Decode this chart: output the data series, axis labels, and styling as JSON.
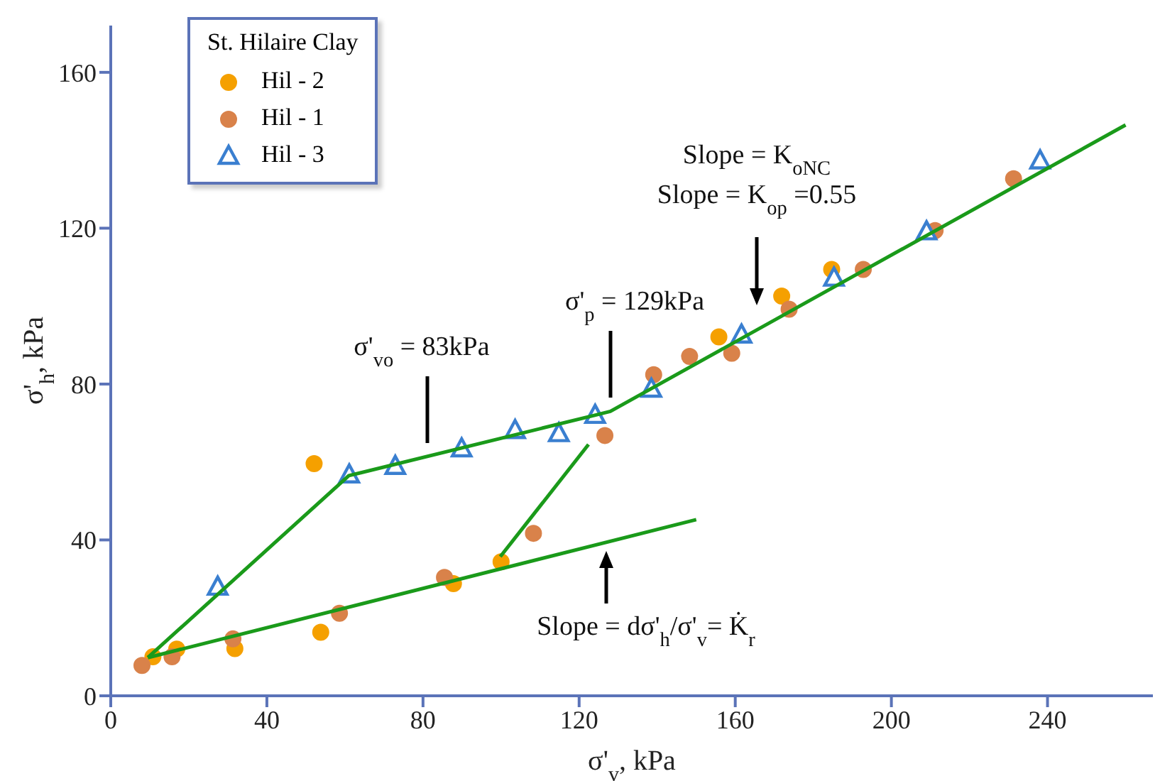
{
  "chart_data": {
    "type": "scatter",
    "xlabel": "σ'$_{v}$, kPa",
    "ylabel": "σ'$_{h}$, kPa",
    "legend_title": "St. Hilaire Clay",
    "legend": "top left",
    "xlim": [
      0,
      267
    ],
    "ylim": [
      0,
      172
    ],
    "xticks": [
      0,
      40,
      80,
      120,
      160,
      200,
      240
    ],
    "yticks": [
      0,
      40,
      80,
      120,
      160
    ],
    "series": [
      {
        "name": "Hil - 2",
        "color": "#f5a000",
        "marker": "circle",
        "x": [
          10.8,
          16.9,
          31.8,
          52.1,
          53.8,
          87.8,
          100.0,
          155.8,
          171.9,
          184.7
        ],
        "values": [
          10.0,
          12.0,
          12.1,
          59.6,
          16.3,
          28.8,
          34.4,
          92.1,
          102.6,
          109.4
        ]
      },
      {
        "name": "Hil - 1",
        "color": "#d9824a",
        "marker": "circle",
        "x": [
          8.0,
          15.7,
          31.3,
          58.6,
          85.5,
          108.3,
          126.6,
          139.1,
          148.3,
          159.1,
          173.8,
          192.8,
          211.2,
          231.3
        ],
        "values": [
          7.8,
          10.0,
          14.6,
          21.2,
          30.4,
          41.7,
          66.8,
          82.4,
          87.1,
          87.9,
          99.2,
          109.4,
          119.4,
          132.7
        ]
      },
      {
        "name": "Hil - 3",
        "color": "#3a7fd0",
        "marker": "triangle",
        "x": [
          27.4,
          61.1,
          72.9,
          89.9,
          103.6,
          114.8,
          124.1,
          138.5,
          161.6,
          185.3,
          209.0,
          238.1
        ],
        "values": [
          27.9,
          56.7,
          58.9,
          63.4,
          68.1,
          67.3,
          72.0,
          78.7,
          92.6,
          107.2,
          119.1,
          137.3
        ]
      },
      {
        "type": "line",
        "color": "#1a9a1a",
        "marker": "none",
        "x": [
          9.5,
          150
        ],
        "values": [
          9.8,
          45.2
        ]
      },
      {
        "type": "line",
        "color": "#1a9a1a",
        "marker": "none",
        "x": [
          9.5,
          61,
          124,
          128,
          260
        ],
        "values": [
          9.8,
          56.5,
          72,
          73,
          146.5
        ]
      },
      {
        "type": "line",
        "color": "#1a9a1a",
        "marker": "none",
        "x": [
          99.8,
          122.4
        ],
        "values": [
          35.7,
          64.5
        ]
      }
    ],
    "annotations": [
      "σ'$_{vo}$ = 83kPa",
      "σ'$_{p}$ = 129kPa",
      "Slope = K$_{oNC}$\nSlope = K$_{op}$ =0.55",
      "Slope = dσ'$_{h}$/σ'$_{v}$= K̇$_{r}$"
    ]
  }
}
